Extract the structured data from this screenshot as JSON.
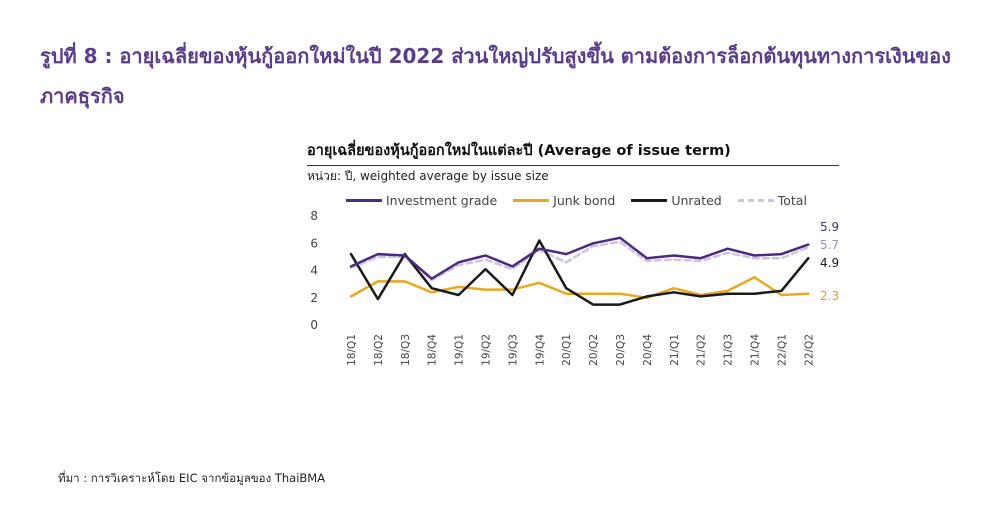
{
  "figure": {
    "title": "รูปที่ 8 : อายุเฉลี่ยของหุ้นกู้ออกใหม่ในปี 2022 ส่วนใหญ่ปรับสูงขึ้น ตามต้องการล็อกต้นทุนทางการเงินของภาคธุรกิจ",
    "source": "ที่มา : การวิเคราะห์โดย EIC จากข้อมูลของ ThaiBMA"
  },
  "chart_data": {
    "type": "line",
    "title": "อายุเฉลี่ยของหุ้นกู้ออกใหม่ในแต่ละปี (Average of issue term)",
    "units_label": "หน่วย: ปี, weighted  average by issue size",
    "x": [
      "18/Q1",
      "18/Q2",
      "18/Q3",
      "18/Q4",
      "19/Q1",
      "19/Q2",
      "19/Q3",
      "19/Q4",
      "20/Q1",
      "20/Q2",
      "20/Q3",
      "20/Q4",
      "21/Q1",
      "21/Q2",
      "21/Q3",
      "21/Q4",
      "22/Q1",
      "22/Q2"
    ],
    "y_ticks": [
      "0",
      "2",
      "4",
      "6",
      "8"
    ],
    "ylim": [
      0,
      8
    ],
    "grid": false,
    "legend_position": "top",
    "series": [
      {
        "name": "Investment grade",
        "color": "#4b2b7f",
        "dashed": false,
        "values": [
          4.3,
          5.2,
          5.1,
          3.4,
          4.6,
          5.1,
          4.3,
          5.6,
          5.2,
          6.0,
          6.4,
          4.9,
          5.1,
          4.9,
          5.6,
          5.1,
          5.2,
          5.9
        ],
        "end_label": "5.9"
      },
      {
        "name": "Junk bond",
        "color": "#eaa81d",
        "dashed": false,
        "values": [
          2.1,
          3.2,
          3.2,
          2.4,
          2.8,
          2.6,
          2.6,
          3.1,
          2.3,
          2.3,
          2.3,
          2.0,
          2.7,
          2.2,
          2.5,
          3.5,
          2.2,
          2.3
        ],
        "end_label": "2.3"
      },
      {
        "name": "Unrated",
        "color": "#1a1a1a",
        "dashed": false,
        "values": [
          5.2,
          1.9,
          5.2,
          2.7,
          2.2,
          4.1,
          2.2,
          6.2,
          2.7,
          1.5,
          1.5,
          2.1,
          2.4,
          2.1,
          2.3,
          2.3,
          2.5,
          4.9
        ],
        "end_label": "4.9"
      },
      {
        "name": "Total",
        "color": "#cfc3e3",
        "dashed": true,
        "values": [
          4.2,
          5.0,
          5.0,
          3.3,
          4.4,
          4.8,
          4.1,
          5.5,
          4.6,
          5.8,
          6.1,
          4.7,
          4.8,
          4.7,
          5.3,
          4.9,
          4.9,
          5.7
        ],
        "end_label": "5.7"
      }
    ]
  }
}
